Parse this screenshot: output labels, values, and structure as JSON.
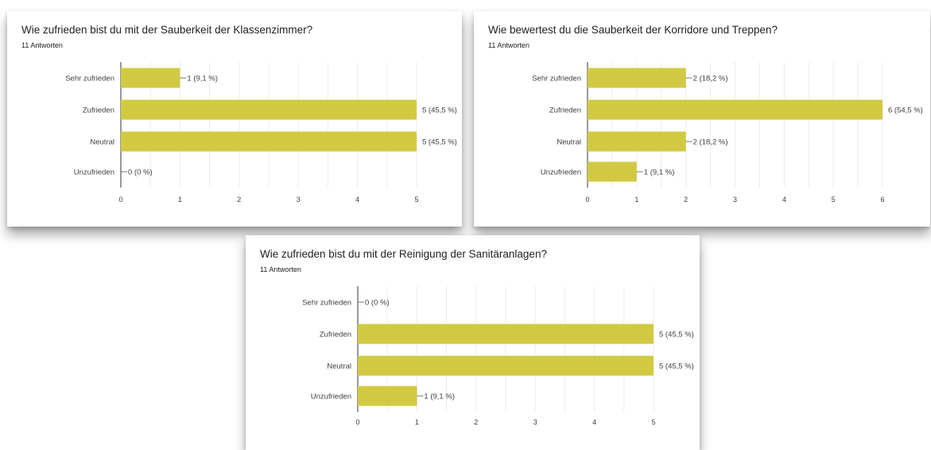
{
  "bar_color": "#d2c943",
  "chart_data": [
    {
      "type": "bar",
      "orientation": "horizontal",
      "title": "Wie zufrieden bist du mit der Sauberkeit der Klassenzimmer?",
      "subtitle": "11 Antworten",
      "categories": [
        "Sehr zufrieden",
        "Zufrieden",
        "Neutral",
        "Unzufrieden"
      ],
      "values": [
        1,
        5,
        5,
        0
      ],
      "value_labels": [
        "1 (9,1 %)",
        "5 (45,5 %)",
        "5 (45,5 %)",
        "0 (0 %)"
      ],
      "xlim": [
        0,
        5
      ],
      "xticks": [
        "0",
        "1",
        "2",
        "3",
        "4",
        "5"
      ],
      "grid": true
    },
    {
      "type": "bar",
      "orientation": "horizontal",
      "title": "Wie bewertest du die Sauberkeit der Korridore und Treppen?",
      "subtitle": "11 Antworten",
      "categories": [
        "Sehr zufrieden",
        "Zufrieden",
        "Neutral",
        "Unzufrieden"
      ],
      "values": [
        2,
        6,
        2,
        1
      ],
      "value_labels": [
        "2 (18,2 %)",
        "6 (54,5 %)",
        "2 (18,2 %)",
        "1 (9,1 %)"
      ],
      "xlim": [
        0,
        6
      ],
      "xticks": [
        "0",
        "1",
        "2",
        "3",
        "4",
        "5",
        "6"
      ],
      "grid": true
    },
    {
      "type": "bar",
      "orientation": "horizontal",
      "title": "Wie zufrieden bist du mit der Reinigung der Sanitäranlagen?",
      "subtitle": "11 Antworten",
      "categories": [
        "Sehr zufrieden",
        "Zufrieden",
        "Neutral",
        "Unzufrieden"
      ],
      "values": [
        0,
        5,
        5,
        1
      ],
      "value_labels": [
        "0 (0 %)",
        "5 (45,5 %)",
        "5 (45,5 %)",
        "1 (9,1 %)"
      ],
      "xlim": [
        0,
        5
      ],
      "xticks": [
        "0",
        "1",
        "2",
        "3",
        "4",
        "5"
      ],
      "grid": true
    }
  ]
}
